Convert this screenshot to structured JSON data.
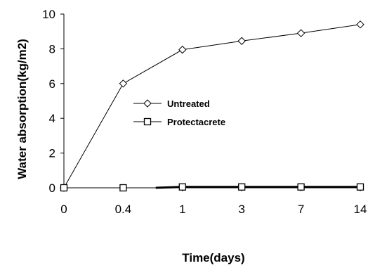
{
  "chart_data": {
    "type": "line",
    "categories": [
      "0",
      "0.4",
      "1",
      "3",
      "7",
      "14"
    ],
    "xlabel": "Time(days)",
    "ylabel": "Water absorption(kg/m2)",
    "ylim": [
      0,
      10
    ],
    "yticks": [
      "0",
      "2",
      "4",
      "6",
      "8",
      "10"
    ],
    "grid": false,
    "legend_position": "center",
    "series": [
      {
        "name": "Untreated",
        "marker": "diamond",
        "values": [
          0,
          6.0,
          7.95,
          8.45,
          8.9,
          9.4
        ]
      },
      {
        "name": "Protectacrete",
        "marker": "square",
        "values": [
          0,
          0,
          0.05,
          0.05,
          0.05,
          0.05
        ]
      }
    ]
  }
}
